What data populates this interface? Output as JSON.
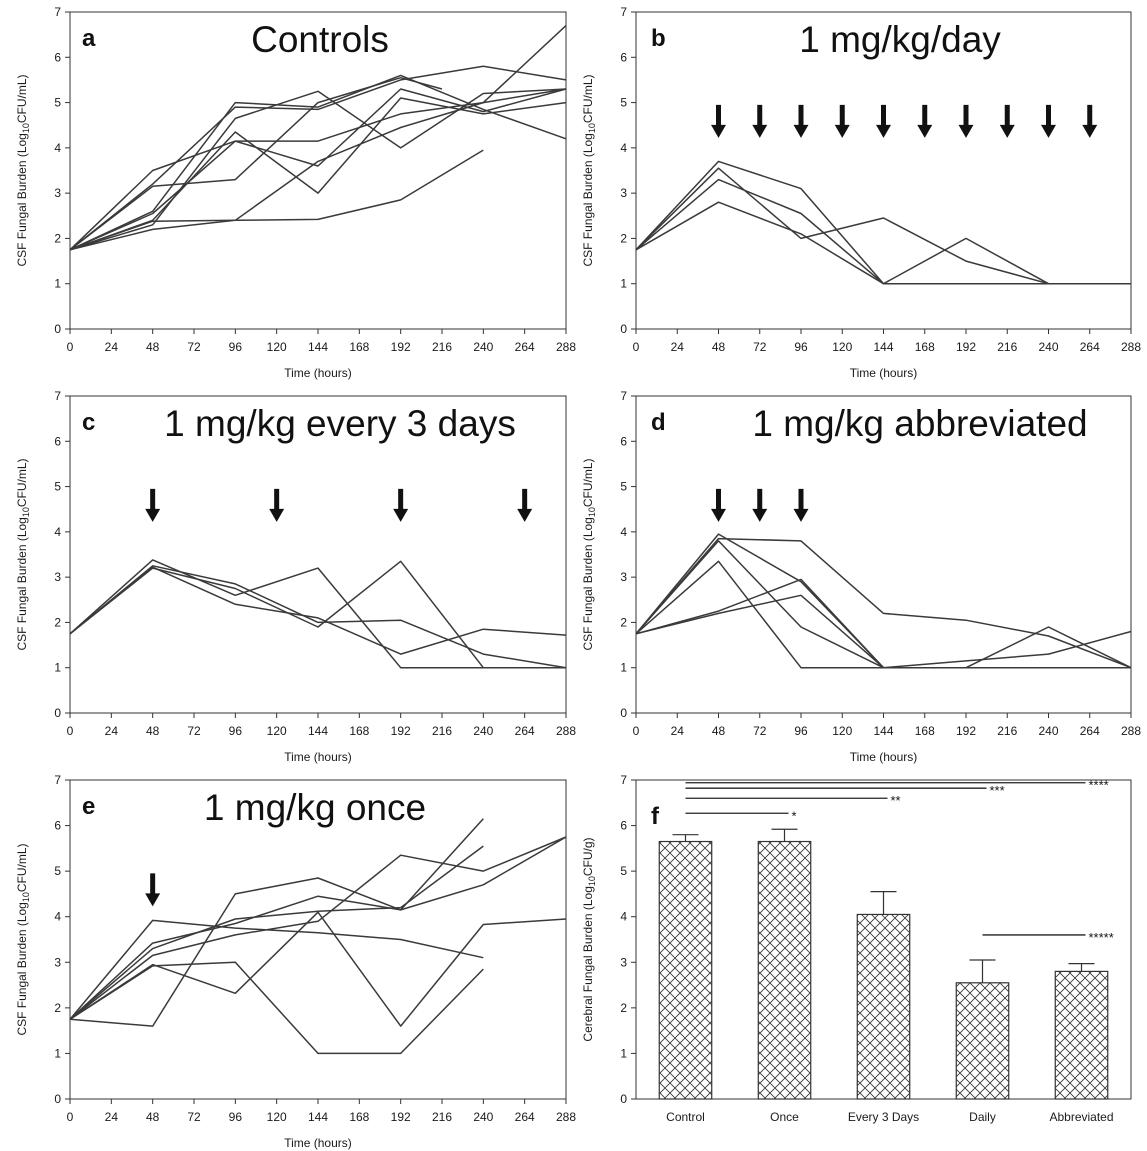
{
  "chart_data": [
    {
      "id": "a",
      "type": "line",
      "letter": "a",
      "title": "Controls",
      "xlabel": "Time (hours)",
      "ylabel": "CSF Fungal Burden (Log10CFU/mL)",
      "xlim": [
        0,
        288
      ],
      "ylim": [
        0,
        7
      ],
      "xticks": [
        "0",
        "24",
        "48",
        "72",
        "96",
        "120",
        "144",
        "168",
        "192",
        "216",
        "240",
        "264",
        "288"
      ],
      "yticks": [
        "0",
        "1",
        "2",
        "3",
        "4",
        "5",
        "6",
        "7"
      ],
      "arrows_at_hours": [],
      "series": [
        {
          "x": [
            0,
            48,
            96,
            144,
            192,
            240,
            288
          ],
          "y": [
            1.75,
            3.5,
            4.15,
            4.15,
            4.75,
            5.0,
            5.3
          ]
        },
        {
          "x": [
            0,
            48,
            96,
            144,
            192,
            240,
            288
          ],
          "y": [
            1.75,
            3.2,
            4.9,
            4.85,
            5.5,
            5.8,
            5.5
          ]
        },
        {
          "x": [
            0,
            48,
            96,
            144,
            192,
            240,
            288
          ],
          "y": [
            1.75,
            2.6,
            5.0,
            4.9,
            5.6,
            4.85,
            4.2
          ]
        },
        {
          "x": [
            0,
            48,
            96,
            144,
            192,
            240,
            288
          ],
          "y": [
            1.75,
            2.55,
            4.15,
            3.6,
            5.3,
            4.8,
            5.3
          ]
        },
        {
          "x": [
            0,
            48,
            96,
            144,
            192,
            240,
            288
          ],
          "y": [
            1.75,
            2.4,
            4.35,
            3.0,
            5.1,
            4.75,
            5.0
          ]
        },
        {
          "x": [
            0,
            48,
            96,
            144,
            192,
            240,
            288
          ],
          "y": [
            1.75,
            2.3,
            4.65,
            5.25,
            4.0,
            5.2,
            5.3
          ]
        },
        {
          "x": [
            0,
            48,
            96,
            144,
            192,
            216
          ],
          "y": [
            1.75,
            3.15,
            3.3,
            5.0,
            5.55,
            5.3
          ]
        },
        {
          "x": [
            0,
            48,
            96,
            144,
            192,
            240,
            288
          ],
          "y": [
            1.75,
            2.2,
            2.4,
            3.7,
            4.45,
            5.0,
            6.7
          ]
        },
        {
          "x": [
            0,
            48,
            96,
            144,
            192,
            240
          ],
          "y": [
            1.75,
            2.38,
            2.4,
            2.42,
            2.85,
            3.95
          ]
        }
      ]
    },
    {
      "id": "b",
      "type": "line",
      "letter": "b",
      "title": "1 mg/kg/day",
      "xlabel": "Time (hours)",
      "ylabel": "CSF Fungal Burden (Log10CFU/mL)",
      "xlim": [
        0,
        288
      ],
      "ylim": [
        0,
        7
      ],
      "xticks": [
        "0",
        "24",
        "48",
        "72",
        "96",
        "120",
        "144",
        "168",
        "192",
        "216",
        "240",
        "264",
        "288"
      ],
      "yticks": [
        "0",
        "1",
        "2",
        "3",
        "4",
        "5",
        "6",
        "7"
      ],
      "arrows_at_hours": [
        48,
        72,
        96,
        120,
        144,
        168,
        192,
        216,
        240,
        264
      ],
      "series": [
        {
          "x": [
            0,
            48,
            96,
            144,
            192,
            240,
            288
          ],
          "y": [
            1.75,
            3.7,
            3.1,
            1.0,
            1.0,
            1.0,
            1.0
          ]
        },
        {
          "x": [
            0,
            48,
            96,
            144,
            192,
            240,
            288
          ],
          "y": [
            1.75,
            3.55,
            2.0,
            2.45,
            1.5,
            1.0,
            1.0
          ]
        },
        {
          "x": [
            0,
            48,
            96,
            144,
            192,
            240,
            288
          ],
          "y": [
            1.75,
            3.3,
            2.55,
            1.0,
            2.0,
            1.0,
            1.0
          ]
        },
        {
          "x": [
            0,
            48,
            96,
            144,
            192,
            240
          ],
          "y": [
            1.75,
            2.8,
            2.1,
            1.0,
            1.0,
            1.0
          ]
        }
      ]
    },
    {
      "id": "c",
      "type": "line",
      "letter": "c",
      "title": "1 mg/kg every 3 days",
      "xlabel": "Time (hours)",
      "ylabel": "CSF Fungal Burden (Log10CFU/mL)",
      "xlim": [
        0,
        288
      ],
      "ylim": [
        0,
        7
      ],
      "xticks": [
        "0",
        "24",
        "48",
        "72",
        "96",
        "120",
        "144",
        "168",
        "192",
        "216",
        "240",
        "264",
        "288"
      ],
      "yticks": [
        "0",
        "1",
        "2",
        "3",
        "4",
        "5",
        "6",
        "7"
      ],
      "arrows_at_hours": [
        48,
        120,
        192,
        264
      ],
      "series": [
        {
          "x": [
            0,
            48,
            96,
            144,
            192,
            240,
            288
          ],
          "y": [
            1.75,
            3.38,
            2.6,
            3.2,
            1.0,
            1.0,
            1.0
          ]
        },
        {
          "x": [
            0,
            48,
            96,
            144,
            192,
            240,
            288
          ],
          "y": [
            1.75,
            3.25,
            2.85,
            2.0,
            2.05,
            1.3,
            1.0
          ]
        },
        {
          "x": [
            0,
            48,
            96,
            144,
            192,
            240,
            288
          ],
          "y": [
            1.75,
            3.2,
            2.75,
            1.9,
            3.35,
            1.0,
            1.0
          ]
        },
        {
          "x": [
            0,
            48,
            96,
            144,
            192,
            240,
            288
          ],
          "y": [
            1.75,
            3.22,
            2.4,
            2.1,
            1.3,
            1.85,
            1.72
          ]
        }
      ]
    },
    {
      "id": "d",
      "type": "line",
      "letter": "d",
      "title": "1 mg/kg abbreviated",
      "xlabel": "Time (hours)",
      "ylabel": "CSF Fungal Burden (Log10CFU/mL)",
      "xlim": [
        0,
        288
      ],
      "ylim": [
        0,
        7
      ],
      "xticks": [
        "0",
        "24",
        "48",
        "72",
        "96",
        "120",
        "144",
        "168",
        "192",
        "216",
        "240",
        "264",
        "288"
      ],
      "yticks": [
        "0",
        "1",
        "2",
        "3",
        "4",
        "5",
        "6",
        "7"
      ],
      "arrows_at_hours": [
        48,
        72,
        96
      ],
      "series": [
        {
          "x": [
            0,
            48,
            96,
            144,
            192,
            240,
            288
          ],
          "y": [
            1.75,
            3.85,
            3.8,
            2.2,
            2.05,
            1.7,
            1.0
          ]
        },
        {
          "x": [
            0,
            48,
            96,
            144,
            192,
            240,
            288
          ],
          "y": [
            1.75,
            3.95,
            2.9,
            1.0,
            1.0,
            1.9,
            1.0
          ]
        },
        {
          "x": [
            0,
            48,
            96,
            144,
            192,
            240,
            288
          ],
          "y": [
            1.75,
            3.8,
            1.9,
            1.0,
            1.15,
            1.3,
            1.8
          ]
        },
        {
          "x": [
            0,
            48,
            96,
            144,
            192,
            240,
            288
          ],
          "y": [
            1.75,
            3.35,
            1.0,
            1.0,
            1.0,
            1.0,
            1.0
          ]
        },
        {
          "x": [
            0,
            48,
            96,
            144,
            192,
            240,
            288
          ],
          "y": [
            1.75,
            2.25,
            2.95,
            1.0,
            1.0,
            1.0,
            1.0
          ]
        },
        {
          "x": [
            0,
            48,
            96,
            144
          ],
          "y": [
            1.75,
            2.2,
            2.6,
            1.0
          ]
        }
      ]
    },
    {
      "id": "e",
      "type": "line",
      "letter": "e",
      "title": "1 mg/kg once",
      "xlabel": "Time (hours)",
      "ylabel": "CSF Fungal Burden (Log10CFU/mL)",
      "xlim": [
        0,
        288
      ],
      "ylim": [
        0,
        7
      ],
      "xticks": [
        "0",
        "24",
        "48",
        "72",
        "96",
        "120",
        "144",
        "168",
        "192",
        "216",
        "240",
        "264",
        "288"
      ],
      "yticks": [
        "0",
        "1",
        "2",
        "3",
        "4",
        "5",
        "6",
        "7"
      ],
      "arrows_at_hours": [
        48
      ],
      "series": [
        {
          "x": [
            0,
            48,
            96,
            144,
            192,
            240
          ],
          "y": [
            1.75,
            3.42,
            3.85,
            4.45,
            4.15,
            6.15
          ]
        },
        {
          "x": [
            0,
            48,
            96,
            144,
            192,
            240
          ],
          "y": [
            1.75,
            3.3,
            3.95,
            4.12,
            4.2,
            5.55
          ]
        },
        {
          "x": [
            0,
            48,
            96,
            144,
            192,
            240,
            288
          ],
          "y": [
            1.75,
            3.15,
            3.6,
            3.9,
            5.35,
            5.0,
            5.75
          ]
        },
        {
          "x": [
            0,
            48,
            96,
            144,
            192,
            240
          ],
          "y": [
            1.75,
            3.92,
            3.75,
            3.65,
            3.5,
            3.1
          ]
        },
        {
          "x": [
            0,
            48,
            96,
            144,
            192,
            240,
            288
          ],
          "y": [
            1.75,
            1.6,
            4.5,
            4.85,
            4.15,
            4.7,
            5.75
          ]
        },
        {
          "x": [
            0,
            48,
            96,
            144,
            192,
            240,
            288
          ],
          "y": [
            1.75,
            2.95,
            2.32,
            4.1,
            1.6,
            3.83,
            3.95
          ]
        },
        {
          "x": [
            0,
            48,
            96,
            144,
            192,
            240
          ],
          "y": [
            1.75,
            2.92,
            3.0,
            1.0,
            1.0,
            2.85
          ]
        }
      ]
    },
    {
      "id": "f",
      "type": "bar",
      "letter": "f",
      "ylabel": "Cerebral Fungal Burden (Log10CFU/g)",
      "ylim": [
        0,
        7
      ],
      "yticks": [
        "0",
        "1",
        "2",
        "3",
        "4",
        "5",
        "6",
        "7"
      ],
      "categories": [
        "Control",
        "Once",
        "Every 3 Days",
        "Daily",
        "Abbreviated"
      ],
      "values": [
        5.65,
        5.65,
        4.05,
        2.55,
        2.8
      ],
      "errors": [
        0.15,
        0.27,
        0.5,
        0.5,
        0.17
      ],
      "significance": [
        {
          "from": 0,
          "to": 1,
          "level": 6.27,
          "label": "*"
        },
        {
          "from": 0,
          "to": 2,
          "level": 6.6,
          "label": "**"
        },
        {
          "from": 0,
          "to": 3,
          "level": 6.82,
          "label": "***"
        },
        {
          "from": 0,
          "to": 4,
          "level": 6.94,
          "label": "****"
        },
        {
          "from": 3,
          "to": 4,
          "level": 3.6,
          "label": "*****"
        }
      ]
    }
  ]
}
